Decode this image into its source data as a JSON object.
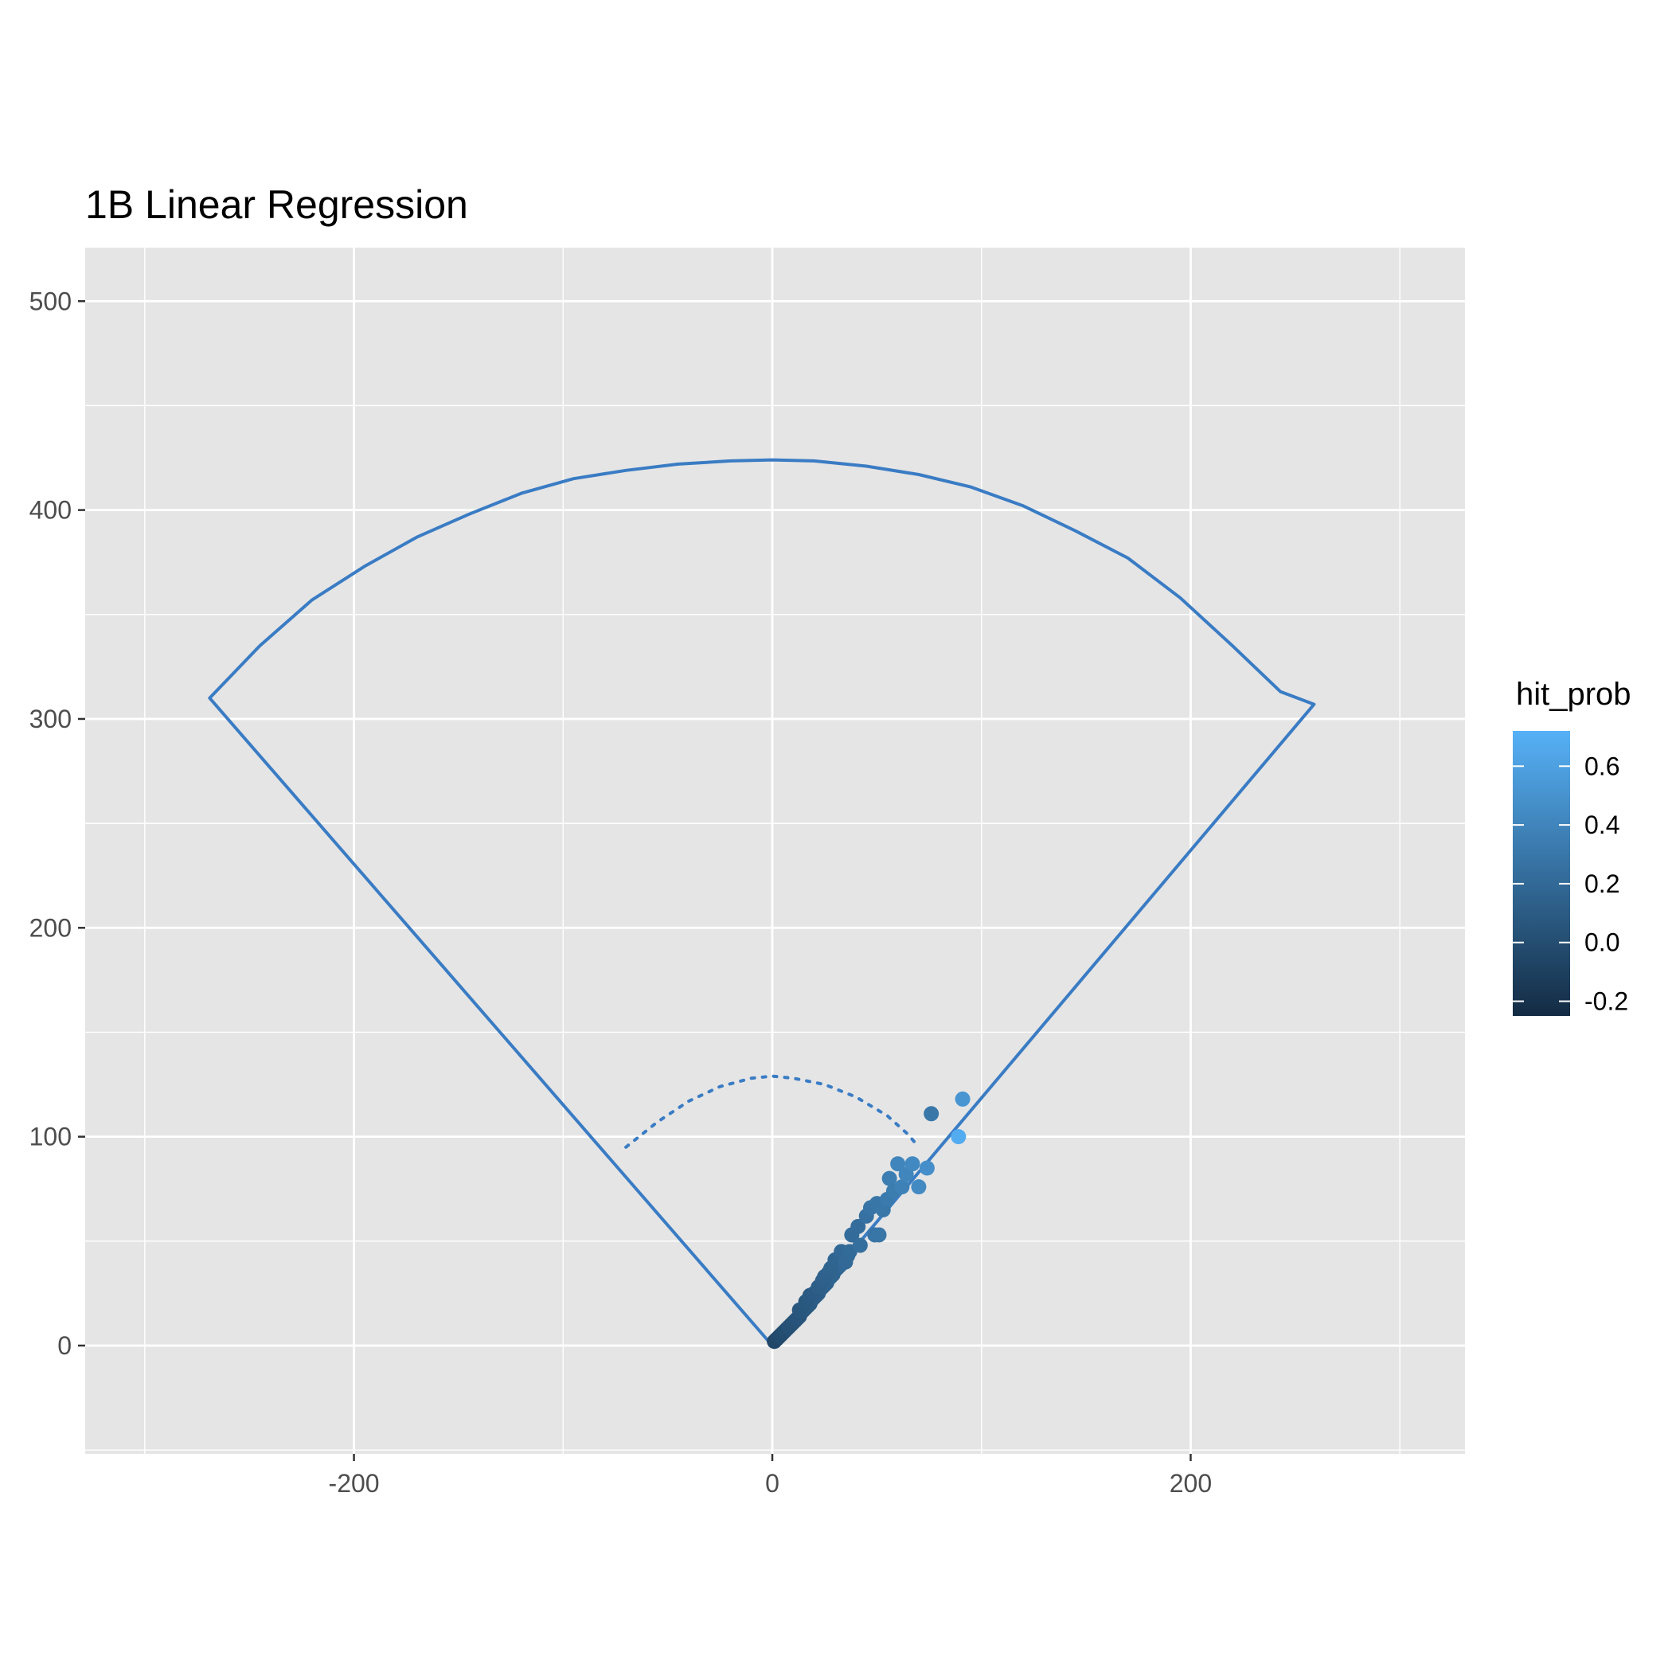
{
  "chart_data": {
    "type": "scatter",
    "title": "1B Linear Regression",
    "xlabel": "",
    "ylabel": "",
    "xlim": [
      -330,
      330
    ],
    "ylim": [
      -50,
      525
    ],
    "x_ticks": [
      -200,
      0,
      200
    ],
    "x_tick_labels": [
      "-200",
      "0",
      "200"
    ],
    "y_ticks": [
      0,
      100,
      200,
      300,
      400,
      500
    ],
    "y_tick_labels": [
      "0",
      "100",
      "200",
      "300",
      "400",
      "500"
    ],
    "grid": true,
    "background": "#e5e5e5",
    "legend": {
      "title": "hit_prob",
      "placement": "right",
      "type": "colorbar",
      "min": -0.25,
      "max": 0.72,
      "low_color": "#132b43",
      "high_color": "#56b1f7",
      "ticks": [
        -0.2,
        0.0,
        0.2,
        0.4,
        0.6
      ],
      "tick_labels": [
        "-0.2",
        "0.0",
        "0.2",
        "0.4",
        "0.6"
      ]
    },
    "outline_color": "#3a7cc4",
    "field_outline": [
      [
        0,
        0
      ],
      [
        -269,
        310
      ],
      [
        -245,
        335
      ],
      [
        -220,
        357
      ],
      [
        -195,
        373
      ],
      [
        -170,
        387
      ],
      [
        -145,
        398
      ],
      [
        -120,
        408
      ],
      [
        -95,
        415
      ],
      [
        -70,
        419
      ],
      [
        -45,
        422
      ],
      [
        -20,
        423.5
      ],
      [
        0,
        424
      ],
      [
        20,
        423.5
      ],
      [
        45,
        421
      ],
      [
        70,
        417
      ],
      [
        95,
        411
      ],
      [
        120,
        402
      ],
      [
        145,
        390
      ],
      [
        170,
        377
      ],
      [
        195,
        358
      ],
      [
        220,
        335
      ],
      [
        243,
        313
      ],
      [
        259,
        307
      ],
      [
        0,
        0
      ]
    ],
    "infield_arc": [
      [
        -70,
        95
      ],
      [
        -55,
        107
      ],
      [
        -40,
        117
      ],
      [
        -25,
        124
      ],
      [
        -10,
        128
      ],
      [
        0,
        129
      ],
      [
        10,
        128
      ],
      [
        25,
        125
      ],
      [
        40,
        119
      ],
      [
        55,
        110
      ],
      [
        65,
        101
      ],
      [
        70,
        95
      ]
    ],
    "points": [
      {
        "x": 1,
        "y": 2,
        "c": -0.05
      },
      {
        "x": 2,
        "y": 3,
        "c": -0.05
      },
      {
        "x": 3,
        "y": 4,
        "c": -0.03
      },
      {
        "x": 4,
        "y": 5,
        "c": -0.02
      },
      {
        "x": 5,
        "y": 6,
        "c": -0.02
      },
      {
        "x": 6,
        "y": 7,
        "c": 0.0
      },
      {
        "x": 7,
        "y": 8,
        "c": 0.0
      },
      {
        "x": 8,
        "y": 9,
        "c": 0.02
      },
      {
        "x": 9,
        "y": 10,
        "c": 0.02
      },
      {
        "x": 10,
        "y": 11,
        "c": 0.03
      },
      {
        "x": 11,
        "y": 12,
        "c": 0.03
      },
      {
        "x": 12,
        "y": 13,
        "c": 0.05
      },
      {
        "x": 13,
        "y": 14,
        "c": 0.05
      },
      {
        "x": 14,
        "y": 16,
        "c": 0.06
      },
      {
        "x": 15,
        "y": 17,
        "c": 0.07
      },
      {
        "x": 16,
        "y": 18,
        "c": 0.08
      },
      {
        "x": 17,
        "y": 19,
        "c": 0.08
      },
      {
        "x": 18,
        "y": 20,
        "c": 0.09
      },
      {
        "x": 19,
        "y": 22,
        "c": 0.1
      },
      {
        "x": 20,
        "y": 23,
        "c": 0.1
      },
      {
        "x": 21,
        "y": 24,
        "c": 0.11
      },
      {
        "x": 22,
        "y": 25,
        "c": 0.12
      },
      {
        "x": 23,
        "y": 27,
        "c": 0.12
      },
      {
        "x": 24,
        "y": 28,
        "c": 0.13
      },
      {
        "x": 25,
        "y": 29,
        "c": 0.14
      },
      {
        "x": 26,
        "y": 30,
        "c": 0.14
      },
      {
        "x": 27,
        "y": 32,
        "c": 0.15
      },
      {
        "x": 28,
        "y": 33,
        "c": 0.16
      },
      {
        "x": 29,
        "y": 34,
        "c": 0.16
      },
      {
        "x": 30,
        "y": 36,
        "c": 0.17
      },
      {
        "x": 31,
        "y": 37,
        "c": 0.17
      },
      {
        "x": 32,
        "y": 38,
        "c": 0.18
      },
      {
        "x": 33,
        "y": 39,
        "c": 0.19
      },
      {
        "x": 34,
        "y": 41,
        "c": 0.19
      },
      {
        "x": 35,
        "y": 42,
        "c": 0.2
      },
      {
        "x": 36,
        "y": 43,
        "c": 0.2
      },
      {
        "x": 13,
        "y": 17,
        "c": 0.06
      },
      {
        "x": 16,
        "y": 21,
        "c": 0.08
      },
      {
        "x": 18,
        "y": 24,
        "c": 0.09
      },
      {
        "x": 20,
        "y": 25,
        "c": 0.1
      },
      {
        "x": 22,
        "y": 28,
        "c": 0.12
      },
      {
        "x": 24,
        "y": 31,
        "c": 0.13
      },
      {
        "x": 25,
        "y": 33,
        "c": 0.14
      },
      {
        "x": 27,
        "y": 35,
        "c": 0.15
      },
      {
        "x": 28,
        "y": 37,
        "c": 0.16
      },
      {
        "x": 30,
        "y": 41,
        "c": 0.17
      },
      {
        "x": 33,
        "y": 45,
        "c": 0.19
      },
      {
        "x": 35,
        "y": 40,
        "c": 0.2
      },
      {
        "x": 37,
        "y": 45,
        "c": 0.21
      },
      {
        "x": 38,
        "y": 53,
        "c": 0.22
      },
      {
        "x": 41,
        "y": 57,
        "c": 0.23
      },
      {
        "x": 42,
        "y": 48,
        "c": 0.24
      },
      {
        "x": 45,
        "y": 62,
        "c": 0.26
      },
      {
        "x": 47,
        "y": 66,
        "c": 0.28
      },
      {
        "x": 49,
        "y": 53,
        "c": 0.28
      },
      {
        "x": 51,
        "y": 53,
        "c": 0.29
      },
      {
        "x": 50,
        "y": 68,
        "c": 0.29
      },
      {
        "x": 53,
        "y": 65,
        "c": 0.3
      },
      {
        "x": 55,
        "y": 70,
        "c": 0.32
      },
      {
        "x": 56,
        "y": 80,
        "c": 0.35
      },
      {
        "x": 58,
        "y": 74,
        "c": 0.34
      },
      {
        "x": 60,
        "y": 87,
        "c": 0.4
      },
      {
        "x": 62,
        "y": 76,
        "c": 0.37
      },
      {
        "x": 64,
        "y": 82,
        "c": 0.4
      },
      {
        "x": 67,
        "y": 87,
        "c": 0.43
      },
      {
        "x": 70,
        "y": 76,
        "c": 0.44
      },
      {
        "x": 74,
        "y": 85,
        "c": 0.47
      },
      {
        "x": 76,
        "y": 111,
        "c": 0.3
      },
      {
        "x": 89,
        "y": 100,
        "c": 0.68
      },
      {
        "x": 91,
        "y": 118,
        "c": 0.52
      }
    ]
  }
}
